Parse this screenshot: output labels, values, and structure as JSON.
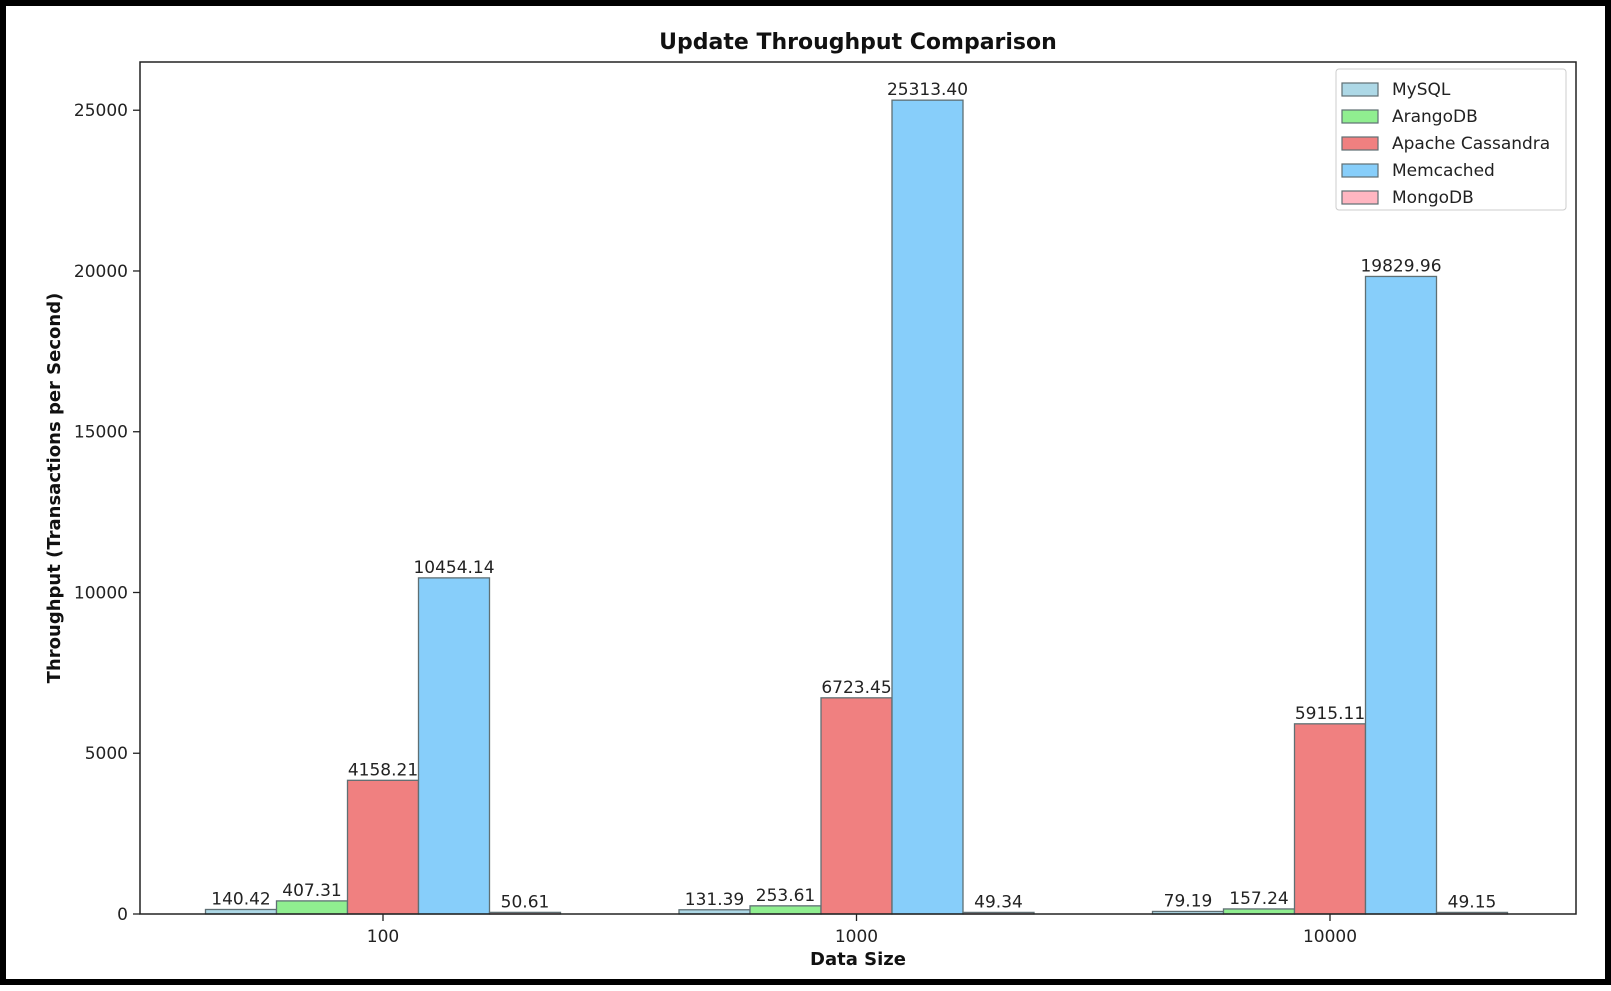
{
  "chart_data": {
    "type": "bar",
    "title": "Update Throughput Comparison",
    "xlabel": "Data Size",
    "ylabel": "Throughput (Transactions per Second)",
    "categories": [
      "100",
      "1000",
      "10000"
    ],
    "ylim": [
      0,
      26500
    ],
    "yticks": [
      0,
      5000,
      10000,
      15000,
      20000,
      25000
    ],
    "ytick_labels": [
      "0",
      "5000",
      "10000",
      "15000",
      "20000",
      "25000"
    ],
    "grid": false,
    "legend_position": "top-right",
    "series": [
      {
        "name": "MySQL",
        "color": "#add8e6",
        "values": [
          140.42,
          131.39,
          79.19
        ],
        "labels": [
          "140.42",
          "131.39",
          "79.19"
        ]
      },
      {
        "name": "ArangoDB",
        "color": "#90ee90",
        "values": [
          407.31,
          253.61,
          157.24
        ],
        "labels": [
          "407.31",
          "253.61",
          "157.24"
        ]
      },
      {
        "name": "Apache Cassandra",
        "color": "#f08080",
        "values": [
          4158.21,
          6723.45,
          5915.11
        ],
        "labels": [
          "4158.21",
          "6723.45",
          "5915.11"
        ]
      },
      {
        "name": "Memcached",
        "color": "#87cefa",
        "values": [
          10454.14,
          25313.4,
          19829.96
        ],
        "labels": [
          "10454.14",
          "25313.40",
          "19829.96"
        ]
      },
      {
        "name": "MongoDB",
        "color": "#ffb6c1",
        "values": [
          50.61,
          49.34,
          49.15
        ],
        "labels": [
          "50.61",
          "49.34",
          "49.15"
        ]
      }
    ]
  }
}
